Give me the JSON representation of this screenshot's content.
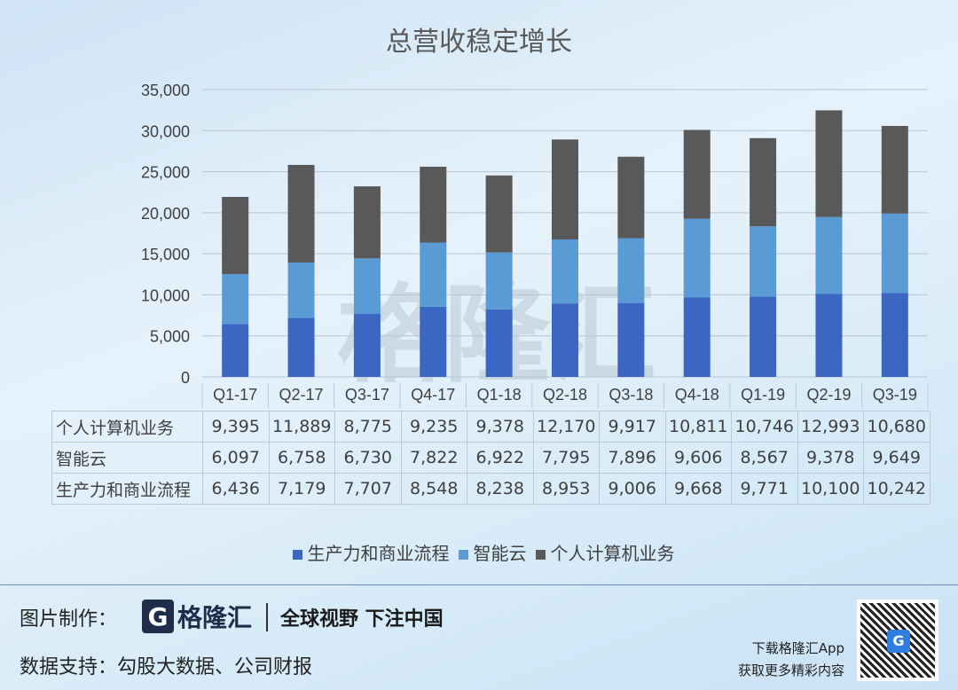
{
  "chart_data": {
    "type": "bar",
    "stacked": true,
    "title": "总营收稳定增长",
    "categories": [
      "Q1-17",
      "Q2-17",
      "Q3-17",
      "Q4-17",
      "Q1-18",
      "Q2-18",
      "Q3-18",
      "Q4-18",
      "Q1-19",
      "Q2-19",
      "Q3-19"
    ],
    "series": [
      {
        "name": "生产力和商业流程",
        "color": "#3b67c2",
        "values": [
          6436,
          7179,
          7707,
          8548,
          8238,
          8953,
          9006,
          9668,
          9771,
          10100,
          10242
        ]
      },
      {
        "name": "智能云",
        "color": "#5b9bd5",
        "values": [
          6097,
          6758,
          6730,
          7822,
          6922,
          7795,
          7896,
          9606,
          8567,
          9378,
          9649
        ]
      },
      {
        "name": "个人计算机业务",
        "color": "#595959",
        "values": [
          9395,
          11889,
          8775,
          9235,
          9378,
          12170,
          9917,
          10811,
          10746,
          12993,
          10680
        ]
      }
    ],
    "ylim": [
      0,
      35000
    ],
    "yticks": [
      "0",
      "5,000",
      "10,000",
      "15,000",
      "20,000",
      "25,000",
      "30,000",
      "35,000"
    ],
    "table_order": [
      2,
      1,
      0
    ],
    "legend_position": "bottom"
  },
  "watermark": "格隆汇",
  "footer": {
    "made_by_label": "图片制作：",
    "logo_mark": "G",
    "logo_name": "格隆汇",
    "slogan": "全球视野 下注中国",
    "data_source": "数据支持：勾股大数据、公司财报",
    "app_line1": "下载格隆汇App",
    "app_line2": "获取更多精彩内容"
  }
}
